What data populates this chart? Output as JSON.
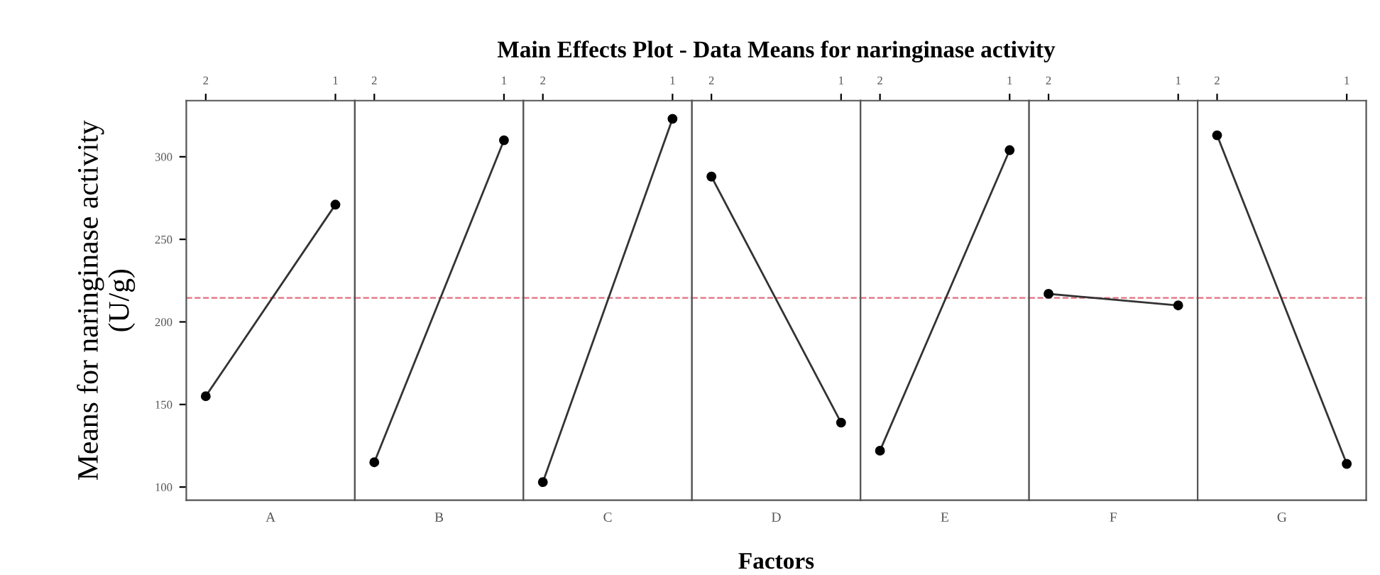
{
  "chart_data": [
    {
      "type": "line",
      "ylabel": "Means for naringinase activity\n(U/g)",
      "xlabel": "A",
      "categories": [
        "2",
        "1"
      ],
      "series": [
        {
          "color": "#333333",
          "values": [
            155,
            271
          ]
        }
      ],
      "ylim": [
        92,
        334
      ],
      "yticks": [
        100,
        150,
        200,
        250,
        300
      ],
      "ref_lines": [
        {
          "axis": "y",
          "value": 214.5,
          "color": "#e07080",
          "line_style": "dashed"
        }
      ],
      "marker": "circle",
      "grid": false
    },
    {
      "type": "line",
      "xlabel": "B",
      "categories": [
        "2",
        "1"
      ],
      "series": [
        {
          "color": "#333333",
          "values": [
            115,
            310
          ]
        }
      ],
      "ylim": [
        92,
        334
      ],
      "tick_labels": "x",
      "ref_lines": [
        {
          "axis": "y",
          "value": 214.5,
          "color": "#e07080",
          "line_style": "dashed"
        }
      ],
      "marker": "circle",
      "grid": false
    },
    {
      "type": "line",
      "xlabel": "C",
      "categories": [
        "2",
        "1"
      ],
      "series": [
        {
          "color": "#333333",
          "values": [
            103,
            323
          ]
        }
      ],
      "ylim": [
        92,
        334
      ],
      "tick_labels": "x",
      "ref_lines": [
        {
          "axis": "y",
          "value": 214.5,
          "color": "#e07080",
          "line_style": "dashed"
        }
      ],
      "marker": "circle",
      "grid": false
    },
    {
      "type": "line",
      "xlabel": "D",
      "title": "Main Effects Plot - Data Means for naringinase activity",
      "annotations": [
        "Factors"
      ],
      "categories": [
        "2",
        "1"
      ],
      "series": [
        {
          "color": "#333333",
          "values": [
            288,
            139
          ]
        }
      ],
      "ylim": [
        92,
        334
      ],
      "tick_labels": "x",
      "ref_lines": [
        {
          "axis": "y",
          "value": 214.5,
          "color": "#e07080",
          "line_style": "dashed"
        }
      ],
      "marker": "circle",
      "grid": false
    },
    {
      "type": "line",
      "xlabel": "E",
      "categories": [
        "2",
        "1"
      ],
      "series": [
        {
          "color": "#333333",
          "values": [
            122,
            304
          ]
        }
      ],
      "ylim": [
        92,
        334
      ],
      "tick_labels": "x",
      "ref_lines": [
        {
          "axis": "y",
          "value": 214.5,
          "color": "#e07080",
          "line_style": "dashed"
        }
      ],
      "marker": "circle",
      "grid": false
    },
    {
      "type": "line",
      "xlabel": "F",
      "categories": [
        "2",
        "1"
      ],
      "series": [
        {
          "color": "#333333",
          "values": [
            217,
            210
          ]
        }
      ],
      "ylim": [
        92,
        334
      ],
      "tick_labels": "x",
      "ref_lines": [
        {
          "axis": "y",
          "value": 214.5,
          "color": "#e07080",
          "line_style": "dashed"
        }
      ],
      "marker": "circle",
      "grid": false
    },
    {
      "type": "line",
      "xlabel": "G",
      "categories": [
        "2",
        "1"
      ],
      "series": [
        {
          "color": "#333333",
          "values": [
            313,
            114
          ]
        }
      ],
      "ylim": [
        92,
        334
      ],
      "tick_labels": "x",
      "ref_lines": [
        {
          "axis": "y",
          "value": 214.5,
          "color": "#e07080",
          "line_style": "dashed"
        }
      ],
      "marker": "circle",
      "grid": false
    }
  ]
}
